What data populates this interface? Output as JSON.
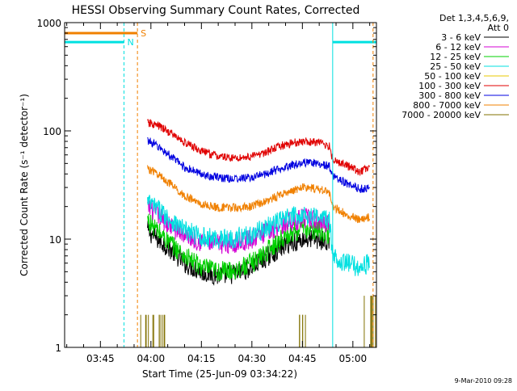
{
  "chart_data": {
    "type": "line",
    "title": "HESSI Observing Summary Count Rates, Corrected",
    "xlabel": "Start Time (25-Jun-09 03:34:22)",
    "ylabel": "Corrected Count Rate (s⁻¹ detector⁻¹)",
    "yscale": "log",
    "ylim": [
      1,
      1000
    ],
    "xlim": [
      "03:34:22",
      "05:07:00"
    ],
    "x_unit": "UT time (HH:MM)",
    "x_tick_labels": [
      "03:45",
      "04:00",
      "04:15",
      "04:30",
      "04:45",
      "05:00"
    ],
    "y_tick_labels": [
      "1",
      "10",
      "100",
      "1000"
    ],
    "grid": false,
    "legend_position": "right",
    "legend_header": [
      "Det 1,3,4,5,6,9,",
      "Att 0"
    ],
    "footer": "9-Mar-2010 09:28",
    "series": [
      {
        "name": "3 - 6 keV",
        "color": "#000000",
        "x": [
          "03:59",
          "04:02",
          "04:06",
          "04:10",
          "04:15",
          "04:20",
          "04:25",
          "04:30",
          "04:35",
          "04:40",
          "04:45",
          "04:50",
          "04:53",
          "04:54",
          "04:58",
          "05:02",
          "05:05"
        ],
        "y": [
          12,
          10,
          8,
          6,
          5,
          4.6,
          4.8,
          5.5,
          7,
          9,
          10,
          10,
          9,
          null,
          null,
          null,
          null
        ]
      },
      {
        "name": "6 - 12 keV",
        "color": "#d400d4",
        "x": [
          "03:59",
          "04:02",
          "04:06",
          "04:10",
          "04:15",
          "04:20",
          "04:25",
          "04:30",
          "04:35",
          "04:40",
          "04:45",
          "04:50",
          "04:53",
          "04:54",
          "04:58",
          "05:02",
          "05:05"
        ],
        "y": [
          20,
          17,
          13,
          11,
          9.5,
          9,
          9.2,
          10,
          12,
          14,
          15.5,
          15,
          14,
          null,
          null,
          null,
          null
        ]
      },
      {
        "name": "12 - 25 keV",
        "color": "#00d000",
        "x": [
          "03:59",
          "04:02",
          "04:06",
          "04:10",
          "04:15",
          "04:20",
          "04:25",
          "04:30",
          "04:35",
          "04:40",
          "04:45",
          "04:50",
          "04:53",
          "04:54",
          "04:58",
          "05:02",
          "05:05"
        ],
        "y": [
          15,
          12,
          9,
          7,
          5.5,
          5,
          5.2,
          6,
          8,
          11,
          12.5,
          12,
          11,
          null,
          null,
          null,
          null
        ]
      },
      {
        "name": "25 - 50 keV",
        "color": "#00e0e0",
        "x": [
          "03:59",
          "04:02",
          "04:06",
          "04:10",
          "04:15",
          "04:20",
          "04:25",
          "04:30",
          "04:35",
          "04:40",
          "04:45",
          "04:50",
          "04:53",
          "04:54",
          "04:58",
          "05:02",
          "05:05"
        ],
        "y": [
          22,
          19,
          15,
          12,
          10.5,
          10,
          10.3,
          11,
          13,
          15.5,
          17,
          16,
          15,
          7,
          6,
          5.5,
          6
        ]
      },
      {
        "name": "50 - 100 keV",
        "color": "#e8c800",
        "x": [
          "03:59",
          "04:02",
          "04:06",
          "04:10",
          "04:15",
          "04:20",
          "04:25",
          "04:30",
          "04:35",
          "04:40",
          "04:45",
          "04:50",
          "04:53",
          "04:54",
          "04:58",
          "05:02",
          "05:05"
        ],
        "y": [
          null,
          null,
          null,
          null,
          null,
          null,
          null,
          null,
          null,
          null,
          null,
          null,
          null,
          null,
          null,
          null,
          null
        ]
      },
      {
        "name": "100 - 300 keV",
        "color": "#e00000",
        "x": [
          "03:59",
          "04:02",
          "04:06",
          "04:10",
          "04:15",
          "04:20",
          "04:25",
          "04:30",
          "04:35",
          "04:40",
          "04:45",
          "04:50",
          "04:53",
          "04:54",
          "04:58",
          "05:02",
          "05:05"
        ],
        "y": [
          118,
          112,
          95,
          78,
          65,
          58,
          56,
          58,
          65,
          75,
          80,
          78,
          72,
          55,
          48,
          42,
          45
        ]
      },
      {
        "name": "300 - 800 keV",
        "color": "#0000e0",
        "x": [
          "03:59",
          "04:02",
          "04:06",
          "04:10",
          "04:15",
          "04:20",
          "04:25",
          "04:30",
          "04:35",
          "04:40",
          "04:45",
          "04:50",
          "04:53",
          "04:54",
          "04:58",
          "05:02",
          "05:05"
        ],
        "y": [
          82,
          72,
          58,
          46,
          40,
          37,
          36,
          37,
          41,
          47,
          51,
          50,
          47,
          38,
          33,
          29,
          30
        ]
      },
      {
        "name": "800 - 7000 keV",
        "color": "#f08000",
        "x": [
          "03:59",
          "04:02",
          "04:06",
          "04:10",
          "04:15",
          "04:20",
          "04:25",
          "04:30",
          "04:35",
          "04:40",
          "04:45",
          "04:50",
          "04:53",
          "04:54",
          "04:58",
          "05:02",
          "05:05"
        ],
        "y": [
          45,
          40,
          32,
          25,
          21,
          19.5,
          19.5,
          20,
          23,
          27,
          30,
          29,
          27,
          20,
          17,
          15,
          16
        ]
      },
      {
        "name": "7000 - 20000 keV",
        "color": "#807000",
        "x": [
          "03:59",
          "04:02",
          "04:06",
          "04:10",
          "04:15",
          "04:20",
          "04:25",
          "04:30",
          "04:35",
          "04:40",
          "04:45",
          "04:50",
          "04:53",
          "04:54",
          "04:58",
          "05:02",
          "05:05"
        ],
        "y": [
          2,
          2,
          null,
          null,
          null,
          null,
          null,
          null,
          null,
          null,
          2,
          null,
          null,
          null,
          null,
          null,
          3
        ]
      }
    ],
    "annotations": [
      {
        "type": "interval_bar",
        "label": "S",
        "color": "#f08000",
        "x_start": "03:34:22",
        "x_end": "03:56",
        "y": 800
      },
      {
        "type": "interval_bar",
        "label": "N",
        "color": "#00e0e0",
        "x_start": "03:34:22",
        "x_end": "03:52",
        "y": 660
      },
      {
        "type": "interval_bar",
        "label": "",
        "color": "#00e0e0",
        "x_start": "04:54",
        "x_end": "05:07",
        "y": 660
      },
      {
        "type": "vline",
        "color": "#00e0e0",
        "dashed": true,
        "x": "03:52"
      },
      {
        "type": "vline",
        "color": "#f08000",
        "dashed": true,
        "x": "03:56"
      },
      {
        "type": "vline",
        "color": "#00e0e0",
        "dashed": false,
        "x": "04:54"
      },
      {
        "type": "vline",
        "color": "#00e0e0",
        "dashed": false,
        "x": "05:07"
      },
      {
        "type": "vline",
        "color": "#f08000",
        "dashed": true,
        "x": "05:06"
      }
    ]
  }
}
